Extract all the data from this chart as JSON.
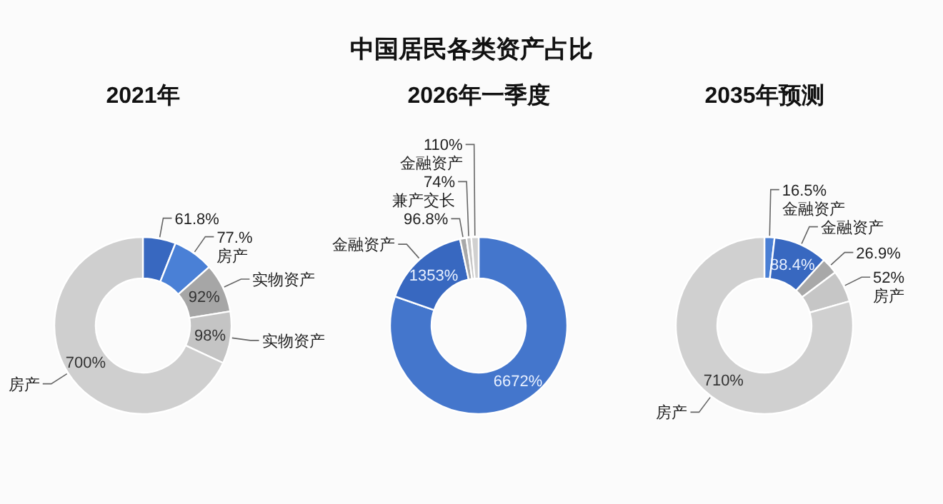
{
  "chart_data": [
    {
      "type": "other",
      "title": "中国居民各类资产占比"
    },
    {
      "type": "donut",
      "title": "2021年",
      "categories": [
        null,
        "房产",
        "实物资产",
        "实物资产",
        "房产"
      ],
      "values": [
        61.8,
        77,
        92,
        98,
        700
      ],
      "value_labels": [
        "61.8%",
        "77.%",
        "92%",
        "98%",
        "700%"
      ],
      "colors": [
        "#3868c0",
        "#4a80d6",
        "#a6a6a6",
        "#c4c4c4",
        "#cfcfcf"
      ]
    },
    {
      "type": "donut",
      "title": "2026年一季度",
      "categories": [
        null,
        "金融资产",
        null,
        "兼产交长",
        "金融资产"
      ],
      "values": [
        6672,
        1353,
        96.8,
        74,
        110
      ],
      "value_labels": [
        "6672%",
        "1353%",
        "96.8%",
        "74%",
        "110%"
      ],
      "colors": [
        "#4476cc",
        "#3868c0",
        "#a8a8a8",
        "#c6c6c6",
        "#d0d0d0"
      ]
    },
    {
      "type": "donut",
      "title": "2035年预测",
      "categories": [
        "金融资产",
        "金融资产",
        null,
        "房产",
        "房产"
      ],
      "values": [
        16.5,
        88.4,
        26.9,
        52,
        710
      ],
      "value_labels": [
        "16.5%",
        "88.4%",
        "26.9%",
        "52%",
        "710%"
      ],
      "colors": [
        "#4a7fd4",
        "#3868c0",
        "#a8a8a8",
        "#c6c6c6",
        "#d0d0d0"
      ]
    }
  ]
}
